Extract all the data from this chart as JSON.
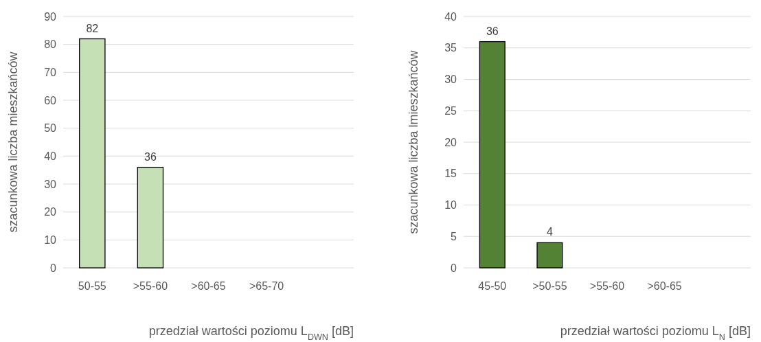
{
  "chart_data": [
    {
      "type": "bar",
      "categories": [
        "50-55",
        ">55-60",
        ">60-65",
        ">65-70",
        null
      ],
      "values": [
        82,
        36,
        0,
        0,
        null
      ],
      "color": "#c5e0b4",
      "value_labels": [
        "82",
        "36",
        null,
        null,
        null
      ],
      "ylim": [
        0,
        90
      ],
      "yticks": [
        0,
        10,
        20,
        30,
        40,
        50,
        60,
        70,
        80,
        90
      ],
      "grid": "y",
      "ylabel": "szacunkowa liczba mieszkańców",
      "xlabel": "przedział wartości poziomu L$_{DWN}$ [dB]"
    },
    {
      "type": "bar",
      "categories": [
        "45-50",
        ">50-55",
        ">55-60",
        ">60-65",
        null
      ],
      "values": [
        36,
        4,
        0,
        0,
        null
      ],
      "color": "#548235",
      "value_labels": [
        "36",
        "4",
        null,
        null,
        null
      ],
      "ylim": [
        0,
        40
      ],
      "yticks": [
        0,
        5,
        10,
        15,
        20,
        25,
        30,
        35,
        40
      ],
      "grid": "y",
      "ylabel": "szacunkowa liczba lmieszkańców",
      "xlabel": "przedział wartości poziomu L$_{N}$ [dB]"
    }
  ]
}
